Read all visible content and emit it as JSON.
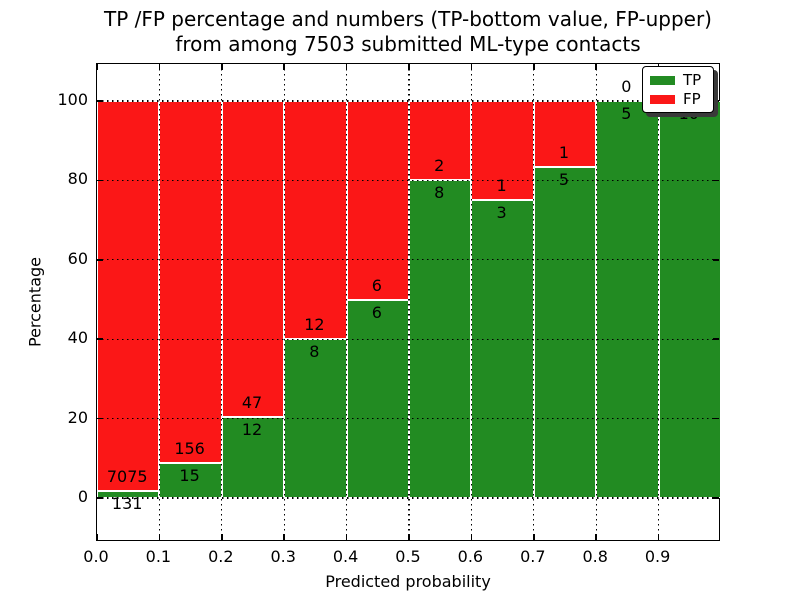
{
  "title": {
    "line1": "TP /FP percentage and numbers (TP-bottom value, FP-upper)",
    "line2": "from among 7503 submitted ML-type contacts"
  },
  "axes": {
    "xlabel": "Predicted probability",
    "ylabel": "Percentage",
    "xtick_labels": [
      "0.0",
      "0.1",
      "0.2",
      "0.3",
      "0.4",
      "0.5",
      "0.6",
      "0.7",
      "0.8",
      "0.9"
    ],
    "ytick_labels": [
      "0",
      "20",
      "40",
      "60",
      "80",
      "100"
    ]
  },
  "legend": {
    "position": "upper right",
    "items": [
      {
        "label": "TP",
        "color": "#228b22"
      },
      {
        "label": "FP",
        "color": "#fb1717"
      }
    ]
  },
  "chart_data": {
    "type": "bar",
    "stacked": true,
    "normalized": "percent-of-bin",
    "title": "TP /FP percentage and numbers (TP-bottom value, FP-upper) from among 7503 submitted ML-type contacts",
    "xlabel": "Predicted probability",
    "ylabel": "Percentage",
    "total_contacts": 7503,
    "x_bin_edges": [
      0.0,
      0.1,
      0.2,
      0.3,
      0.4,
      0.5,
      0.6,
      0.7,
      0.8,
      0.9,
      1.0
    ],
    "series": [
      {
        "name": "TP",
        "color": "#228b22",
        "position": "bottom",
        "values": [
          131,
          15,
          12,
          8,
          6,
          8,
          3,
          5,
          5,
          10
        ]
      },
      {
        "name": "FP",
        "color": "#fb1717",
        "position": "top",
        "values": [
          7075,
          156,
          47,
          12,
          6,
          2,
          1,
          1,
          0,
          0
        ]
      }
    ],
    "tp_percent_of_bin": [
      1.82,
      8.77,
      20.34,
      40.0,
      50.0,
      80.0,
      75.0,
      83.33,
      100.0,
      100.0
    ],
    "xlim": [
      0.0,
      1.0
    ],
    "ylim": [
      -11,
      109.5
    ],
    "xticks": [
      0.0,
      0.1,
      0.2,
      0.3,
      0.4,
      0.5,
      0.6,
      0.7,
      0.8,
      0.9
    ],
    "yticks": [
      0,
      20,
      40,
      60,
      80,
      100
    ],
    "grid": {
      "linestyle": "dotted",
      "color": "#000000",
      "axis": "both"
    },
    "bar_edge_color": "#ffffff",
    "legend_position": "upper right"
  }
}
